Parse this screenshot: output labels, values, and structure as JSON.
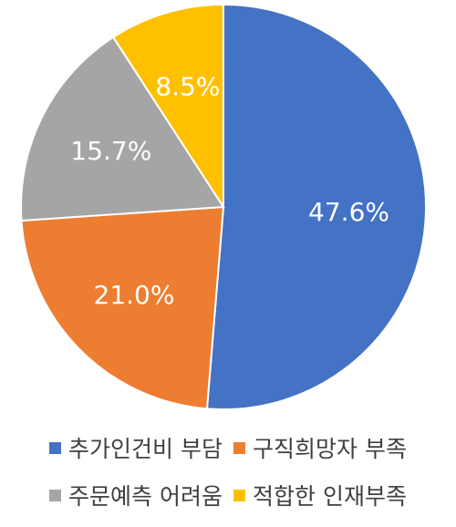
{
  "chart_data": {
    "type": "pie",
    "title": "",
    "start_angle_deg": 0,
    "direction": "clockwise",
    "slices": [
      {
        "name": "추가인건비 부담",
        "value": 47.6,
        "label": "47.6%",
        "color": "#4472C4"
      },
      {
        "name": "구직희망자 부족",
        "value": 21.0,
        "label": "21.0%",
        "color": "#ED7D31"
      },
      {
        "name": "주문예측 어려움",
        "value": 15.7,
        "label": "15.7%",
        "color": "#A5A5A5"
      },
      {
        "name": "적합한 인재부족",
        "value": 8.5,
        "label": "8.5%",
        "color": "#FFC000"
      }
    ],
    "legend": {
      "placement": "bottom",
      "rows": [
        [
          0,
          1
        ],
        [
          2,
          3
        ]
      ]
    }
  }
}
